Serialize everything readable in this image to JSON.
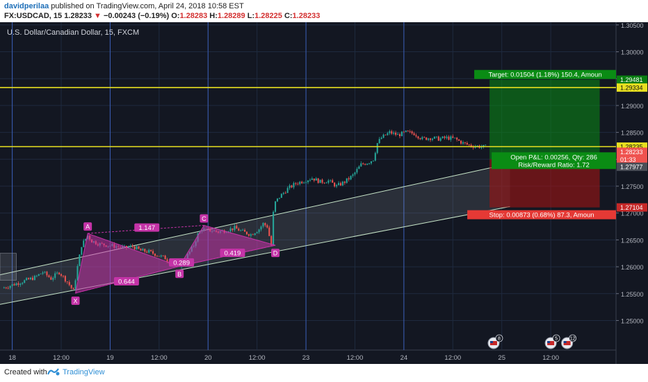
{
  "header": {
    "author": "davidperilaa",
    "published_text": "published on TradingView.com, April 24, 2018 10:58 EST",
    "symbol_line": "FX:USDCAD, 15",
    "last_price": "1.28233",
    "change_arrow": "▼",
    "change": "−0.00243 (−0.19%)",
    "o_label": "O:",
    "o_value": "1.28283",
    "h_label": "H:",
    "h_value": "1.28289",
    "l_label": "L:",
    "l_value": "1.28225",
    "c_label": "C:",
    "c_value": "1.28233"
  },
  "footer": {
    "created_with": "Created with",
    "brand": "TradingView"
  },
  "colors": {
    "background": "#131722",
    "up": "#26a69a",
    "down": "#ef5350",
    "pattern": "#c433a7",
    "hline": "#e8e020",
    "target": "#0a6b10",
    "stop": "#8b0e10",
    "grid": "#1f2a3f",
    "session": "#3a5fb8"
  },
  "chart_data": {
    "type": "candlestick",
    "title": "U.S. Dollar/Canadian Dollar, 15, FXCM",
    "x_ticks": [
      {
        "label": "18",
        "t": 0
      },
      {
        "label": "12:00",
        "t": 12
      },
      {
        "label": "19",
        "t": 24
      },
      {
        "label": "12:00",
        "t": 36
      },
      {
        "label": "20",
        "t": 48
      },
      {
        "label": "12:00",
        "t": 60
      },
      {
        "label": "23",
        "t": 72
      },
      {
        "label": "12:00",
        "t": 84
      },
      {
        "label": "24",
        "t": 96
      },
      {
        "label": "12:00",
        "t": 108
      },
      {
        "label": "25",
        "t": 120
      },
      {
        "label": "12:00",
        "t": 132
      }
    ],
    "xlim": [
      -3,
      148
    ],
    "ylim": [
      1.2445,
      1.3055
    ],
    "y_ticks": [
      "1.30500",
      "1.30000",
      "1.29500",
      "1.29000",
      "1.28500",
      "1.28000",
      "1.27500",
      "1.27000",
      "1.26500",
      "1.26000",
      "1.25500",
      "1.25000"
    ],
    "session_lines_t": [
      0,
      24,
      48,
      72,
      96
    ],
    "price_path": [
      [
        -2,
        1.256
      ],
      [
        0,
        1.2565
      ],
      [
        2,
        1.257
      ],
      [
        4,
        1.2575
      ],
      [
        6,
        1.258
      ],
      [
        8,
        1.259
      ],
      [
        10,
        1.2578
      ],
      [
        12,
        1.259
      ],
      [
        14,
        1.2572
      ],
      [
        15.5,
        1.2555
      ],
      [
        16.5,
        1.26
      ],
      [
        17.5,
        1.264
      ],
      [
        19,
        1.2658
      ],
      [
        20,
        1.2648
      ],
      [
        22,
        1.2642
      ],
      [
        24,
        1.264
      ],
      [
        26,
        1.2638
      ],
      [
        28,
        1.2635
      ],
      [
        30,
        1.2638
      ],
      [
        32,
        1.263
      ],
      [
        34,
        1.2628
      ],
      [
        36,
        1.2622
      ],
      [
        38,
        1.2616
      ],
      [
        40,
        1.2603
      ],
      [
        41,
        1.26
      ],
      [
        43,
        1.2615
      ],
      [
        45,
        1.264
      ],
      [
        46,
        1.266
      ],
      [
        47,
        1.267
      ],
      [
        49,
        1.2668
      ],
      [
        51,
        1.2665
      ],
      [
        53,
        1.2668
      ],
      [
        55,
        1.2672
      ],
      [
        57,
        1.2665
      ],
      [
        59,
        1.266
      ],
      [
        61,
        1.267
      ],
      [
        62,
        1.268
      ],
      [
        63,
        1.2675
      ],
      [
        64,
        1.264
      ],
      [
        64.5,
        1.27
      ],
      [
        65,
        1.272
      ],
      [
        66,
        1.273
      ],
      [
        68,
        1.2745
      ],
      [
        70,
        1.2755
      ],
      [
        72,
        1.276
      ],
      [
        74,
        1.2765
      ],
      [
        76,
        1.2758
      ],
      [
        78,
        1.276
      ],
      [
        80,
        1.275
      ],
      [
        82,
        1.2758
      ],
      [
        84,
        1.277
      ],
      [
        86,
        1.279
      ],
      [
        88,
        1.2795
      ],
      [
        89,
        1.28
      ],
      [
        90,
        1.283
      ],
      [
        91,
        1.284
      ],
      [
        93,
        1.285
      ],
      [
        95,
        1.2845
      ],
      [
        97,
        1.285
      ],
      [
        99,
        1.2848
      ],
      [
        101,
        1.2838
      ],
      [
        103,
        1.284
      ],
      [
        105,
        1.2838
      ],
      [
        107,
        1.284
      ],
      [
        109,
        1.2838
      ],
      [
        111,
        1.283
      ],
      [
        113,
        1.2825
      ],
      [
        115,
        1.2824
      ],
      [
        116,
        1.2823
      ]
    ],
    "pattern": {
      "points": [
        {
          "label": "X",
          "t": 15.5,
          "price": 1.2551
        },
        {
          "label": "A",
          "t": 18.5,
          "price": 1.2662
        },
        {
          "label": "B",
          "t": 41,
          "price": 1.2601
        },
        {
          "label": "C",
          "t": 47,
          "price": 1.2677
        },
        {
          "label": "D",
          "t": 64.5,
          "price": 1.264
        }
      ],
      "ratios": [
        {
          "label": "1.147",
          "t": 33,
          "price": 1.2673
        },
        {
          "label": "0.644",
          "t": 28,
          "price": 1.2573
        },
        {
          "label": "0.289",
          "t": 41.5,
          "price": 1.2608
        },
        {
          "label": "0.419",
          "t": 54,
          "price": 1.2626
        }
      ]
    },
    "channel": {
      "t_start": -3,
      "t_end": 122,
      "lower_start": 1.253,
      "lower_end": 1.2712,
      "upper_start": 1.2585,
      "upper_end": 1.2792
    },
    "pre_box": {
      "t_start": -3,
      "t_end": 1,
      "top": 1.2625,
      "bottom": 1.2575
    },
    "horizontal_lines": [
      1.29334,
      1.28235
    ],
    "position": {
      "t_start": 117,
      "t_end": 144,
      "entry": 1.28,
      "target": 1.29481,
      "stop": 1.27104,
      "target_label": "Target: 0.01504 (1.18%) 150.4, Amoun",
      "stop_label": "Stop: 0.00873 (0.68%) 87.3, Amoun",
      "pnl_label": "Open P&L: 0.00256, Qty: 286",
      "rr_label": "Risk/Reward Ratio: 1.72"
    },
    "price_labels": [
      {
        "value": "1.29481",
        "price": 1.29481,
        "bg": "#0a7d12",
        "fg": "#ffffff"
      },
      {
        "value": "1.29334",
        "price": 1.29334,
        "bg": "#e8e020",
        "fg": "#111111"
      },
      {
        "value": "1.28235",
        "price": 1.28235,
        "bg": "#e8e020",
        "fg": "#111111"
      },
      {
        "value": "1.28233",
        "price": 1.2814,
        "bg": "#ef5350",
        "fg": "#ffffff"
      },
      {
        "value": "01:33",
        "price": 1.28,
        "bg": "#ef5350",
        "fg": "#ffffff"
      },
      {
        "value": "1.27977",
        "price": 1.2786,
        "bg": "#4a4e57",
        "fg": "#ffffff"
      },
      {
        "value": "1.27104",
        "price": 1.27104,
        "bg": "#c62828",
        "fg": "#ffffff"
      }
    ],
    "event_icons": [
      {
        "t": 118,
        "badge": "8"
      },
      {
        "t": 132,
        "badge": "5"
      },
      {
        "t": 136,
        "badge": "12"
      }
    ]
  }
}
